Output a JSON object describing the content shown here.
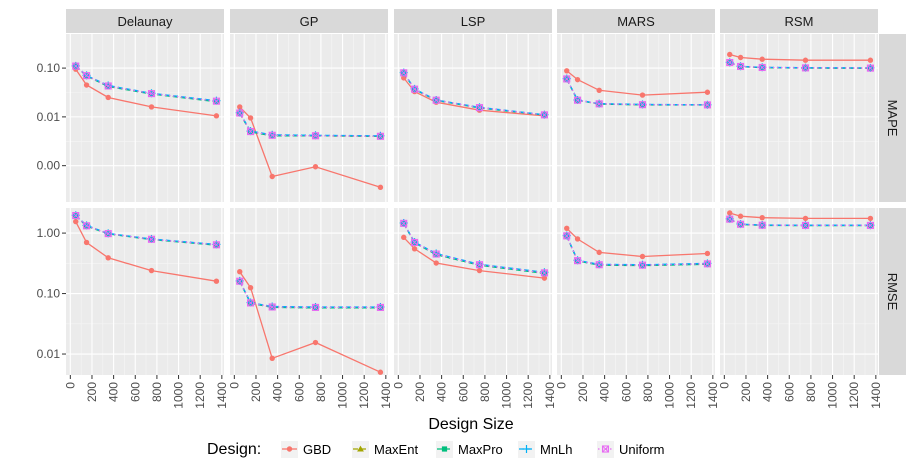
{
  "chart_data": {
    "type": "line",
    "title": "",
    "xlabel": "Design Size",
    "ylabel": "",
    "x": [
      50,
      150,
      350,
      750,
      1350
    ],
    "x_ticks": [
      0,
      200,
      400,
      600,
      800,
      1000,
      1200,
      1400
    ],
    "x_tick_labels": [
      "0",
      "200",
      "400",
      "600",
      "800",
      "1000",
      "1200",
      "1400"
    ],
    "xlim": [
      -40,
      1420
    ],
    "panels": [
      "Delaunay",
      "GP",
      "LSP",
      "MARS",
      "RSM"
    ],
    "rows": [
      {
        "name": "MAPE",
        "y_scale": "log",
        "y_ticks": [
          0.001,
          0.01,
          0.1
        ],
        "y_tick_labels": [
          "0.00",
          "0.01",
          "0.10"
        ],
        "ylim": [
          0.00018,
          0.5
        ]
      },
      {
        "name": "RMSE",
        "y_scale": "log",
        "y_ticks": [
          0.01,
          0.1,
          1
        ],
        "y_tick_labels": [
          "0.01",
          "0.10",
          "1.00"
        ],
        "ylim": [
          0.0045,
          2.6
        ]
      }
    ],
    "series": [
      {
        "name": "GBD",
        "color": "#F8766D",
        "marker": "circle",
        "linetype": "solid"
      },
      {
        "name": "MaxEnt",
        "color": "#A3A500",
        "marker": "triangle",
        "linetype": "dashed"
      },
      {
        "name": "MaxPro",
        "color": "#00BF7D",
        "marker": "square",
        "linetype": "dashed"
      },
      {
        "name": "MnLh",
        "color": "#00B0F6",
        "marker": "plus",
        "linetype": "dashed"
      },
      {
        "name": "Uniform",
        "color": "#E76BF3",
        "marker": "square-cross",
        "linetype": "dotted"
      }
    ],
    "data": {
      "MAPE": {
        "Delaunay": {
          "GBD": [
            0.095,
            0.045,
            0.025,
            0.016,
            0.0105
          ],
          "MaxEnt": [
            0.11,
            0.07,
            0.043,
            0.03,
            0.021
          ],
          "MaxPro": [
            0.109,
            0.069,
            0.042,
            0.0295,
            0.0205
          ],
          "MnLh": [
            0.111,
            0.071,
            0.044,
            0.0305,
            0.0215
          ],
          "Uniform": [
            0.11,
            0.07,
            0.043,
            0.03,
            0.021
          ]
        },
        "GP": {
          "GBD": [
            0.016,
            0.0095,
            0.0006,
            0.00095,
            0.00036
          ],
          "MaxEnt": [
            0.012,
            0.005,
            0.0042,
            0.0041,
            0.004
          ],
          "MaxPro": [
            0.0118,
            0.0049,
            0.0041,
            0.0041,
            0.004
          ],
          "MnLh": [
            0.0122,
            0.0051,
            0.0043,
            0.0042,
            0.0041
          ],
          "Uniform": [
            0.012,
            0.005,
            0.0042,
            0.0041,
            0.004
          ]
        },
        "LSP": {
          "GBD": [
            0.063,
            0.033,
            0.02,
            0.0137,
            0.0105
          ],
          "MaxEnt": [
            0.08,
            0.037,
            0.022,
            0.0155,
            0.011
          ],
          "MaxPro": [
            0.079,
            0.0365,
            0.0218,
            0.0152,
            0.0109
          ],
          "MnLh": [
            0.081,
            0.0375,
            0.0222,
            0.0157,
            0.0111
          ],
          "Uniform": [
            0.08,
            0.037,
            0.022,
            0.0155,
            0.011
          ]
        },
        "MARS": {
          "GBD": [
            0.088,
            0.058,
            0.035,
            0.028,
            0.032
          ],
          "MaxEnt": [
            0.06,
            0.022,
            0.0185,
            0.0178,
            0.0176
          ],
          "MaxPro": [
            0.059,
            0.0218,
            0.0183,
            0.0176,
            0.0175
          ],
          "MnLh": [
            0.061,
            0.0222,
            0.0187,
            0.018,
            0.0177
          ],
          "Uniform": [
            0.06,
            0.022,
            0.0185,
            0.0178,
            0.0176
          ]
        },
        "RSM": {
          "GBD": [
            0.19,
            0.165,
            0.152,
            0.145,
            0.145
          ],
          "MaxEnt": [
            0.13,
            0.108,
            0.103,
            0.101,
            0.1
          ],
          "MaxPro": [
            0.129,
            0.107,
            0.102,
            0.1,
            0.099
          ],
          "MnLh": [
            0.131,
            0.109,
            0.104,
            0.102,
            0.101
          ],
          "Uniform": [
            0.13,
            0.108,
            0.103,
            0.101,
            0.1
          ]
        }
      },
      "RMSE": {
        "Delaunay": {
          "GBD": [
            1.55,
            0.7,
            0.39,
            0.24,
            0.16
          ],
          "MaxEnt": [
            1.95,
            1.32,
            0.98,
            0.79,
            0.64
          ],
          "MaxPro": [
            1.93,
            1.3,
            0.97,
            0.78,
            0.63
          ],
          "MnLh": [
            1.97,
            1.34,
            0.99,
            0.8,
            0.65
          ],
          "Uniform": [
            1.95,
            1.32,
            0.98,
            0.79,
            0.64
          ]
        },
        "GP": {
          "GBD": [
            0.23,
            0.125,
            0.0085,
            0.0155,
            0.005
          ],
          "MaxEnt": [
            0.16,
            0.07,
            0.06,
            0.059,
            0.059
          ],
          "MaxPro": [
            0.158,
            0.069,
            0.059,
            0.058,
            0.058
          ],
          "MnLh": [
            0.162,
            0.071,
            0.061,
            0.06,
            0.06
          ],
          "Uniform": [
            0.16,
            0.07,
            0.06,
            0.059,
            0.059
          ]
        },
        "LSP": {
          "GBD": [
            0.85,
            0.55,
            0.32,
            0.24,
            0.18
          ],
          "MaxEnt": [
            1.45,
            0.7,
            0.45,
            0.3,
            0.22
          ],
          "MaxPro": [
            1.43,
            0.69,
            0.44,
            0.295,
            0.215
          ],
          "MnLh": [
            1.47,
            0.71,
            0.46,
            0.305,
            0.225
          ],
          "Uniform": [
            1.45,
            0.7,
            0.45,
            0.3,
            0.22
          ]
        },
        "MARS": {
          "GBD": [
            1.2,
            0.8,
            0.48,
            0.41,
            0.46
          ],
          "MaxEnt": [
            0.9,
            0.35,
            0.3,
            0.295,
            0.31
          ],
          "MaxPro": [
            0.89,
            0.345,
            0.295,
            0.29,
            0.305
          ],
          "MnLh": [
            0.91,
            0.355,
            0.305,
            0.3,
            0.315
          ],
          "Uniform": [
            0.9,
            0.35,
            0.3,
            0.295,
            0.31
          ]
        },
        "RSM": {
          "GBD": [
            2.15,
            1.9,
            1.8,
            1.75,
            1.75
          ],
          "MaxEnt": [
            1.7,
            1.4,
            1.35,
            1.34,
            1.34
          ],
          "MaxPro": [
            1.68,
            1.39,
            1.34,
            1.33,
            1.33
          ],
          "MnLh": [
            1.72,
            1.41,
            1.36,
            1.35,
            1.35
          ],
          "Uniform": [
            1.7,
            1.4,
            1.35,
            1.34,
            1.34
          ]
        }
      }
    },
    "legend": {
      "title": "Design:",
      "position": "bottom",
      "labels": [
        "GBD",
        "MaxEnt",
        "MaxPro",
        "MnLh",
        "Uniform"
      ]
    }
  }
}
